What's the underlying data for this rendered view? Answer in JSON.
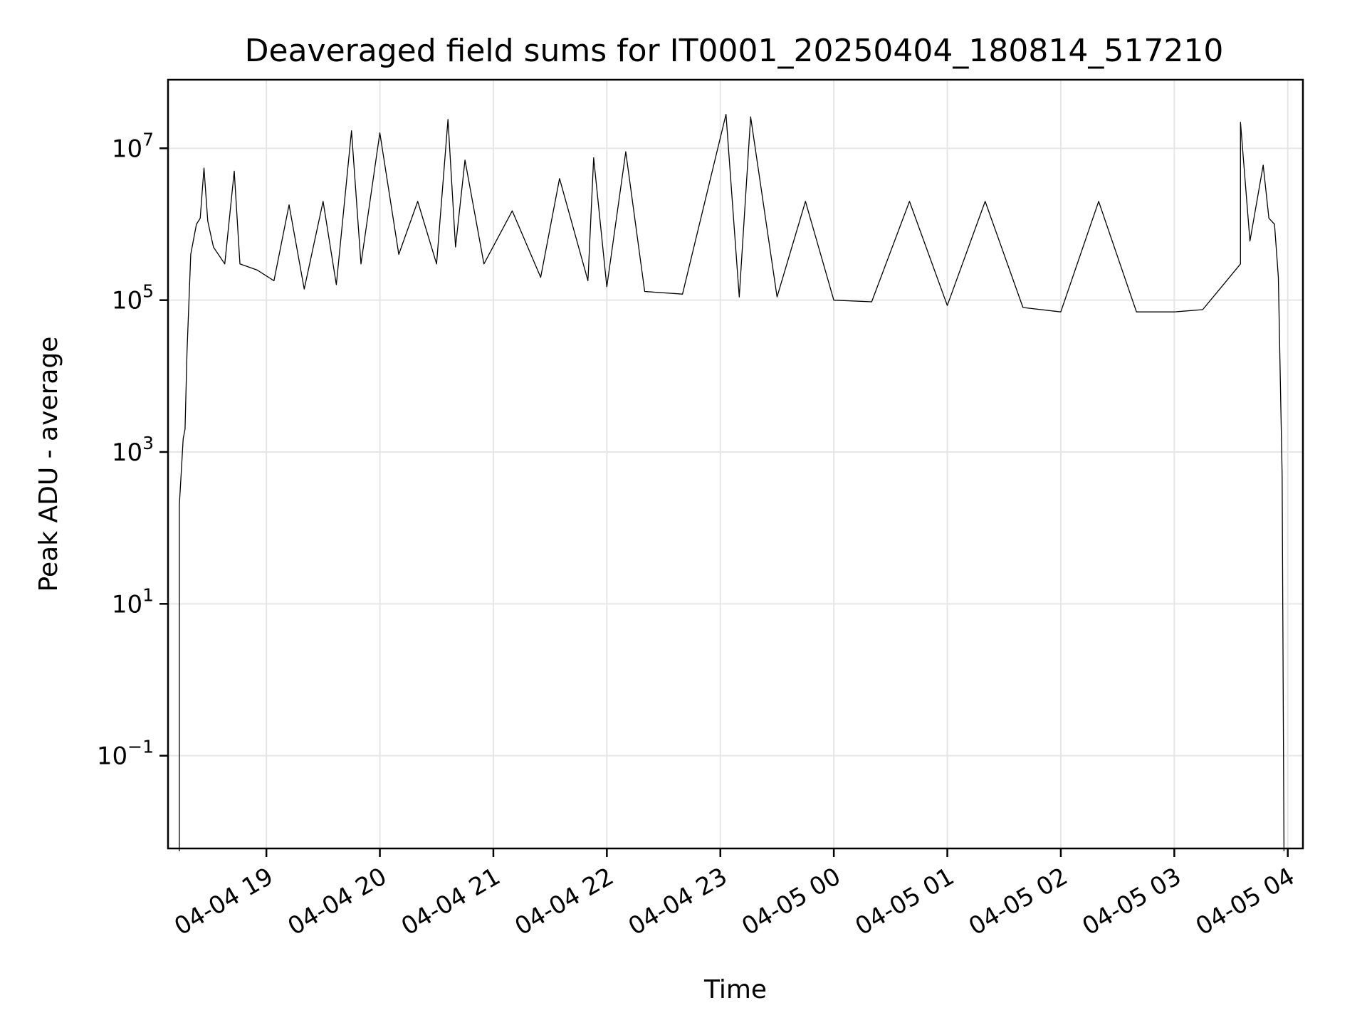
{
  "chart_data": {
    "type": "line",
    "title": "Deaveraged field sums for IT0001_20250404_180814_517210",
    "xlabel": "Time",
    "ylabel": "Peak ADU - average",
    "yscale": "log",
    "grid": true,
    "xlim": [
      "2025-04-04 18:08",
      "2025-04-05 04:08"
    ],
    "ylim": [
      0.006,
      80000000
    ],
    "x_ticks": [
      "04-04 19",
      "04-04 20",
      "04-04 21",
      "04-04 22",
      "04-04 23",
      "04-05 00",
      "04-05 01",
      "04-05 02",
      "04-05 03",
      "04-05 04"
    ],
    "x_tick_times": [
      "2025-04-04 19:00",
      "2025-04-04 20:00",
      "2025-04-04 21:00",
      "2025-04-04 22:00",
      "2025-04-04 23:00",
      "2025-04-05 00:00",
      "2025-04-05 01:00",
      "2025-04-05 02:00",
      "2025-04-05 03:00",
      "2025-04-05 04:00"
    ],
    "y_ticks": [
      {
        "base": "10",
        "exp": "−1",
        "value": 0.1
      },
      {
        "base": "10",
        "exp": "1",
        "value": 10
      },
      {
        "base": "10",
        "exp": "3",
        "value": 1000
      },
      {
        "base": "10",
        "exp": "5",
        "value": 100000
      },
      {
        "base": "10",
        "exp": "7",
        "value": 10000000
      }
    ],
    "series": [
      {
        "color": "#000000",
        "points": [
          [
            "2025-04-04 18:14",
            0.005
          ],
          [
            "2025-04-04 18:14",
            200
          ],
          [
            "2025-04-04 18:16",
            1500
          ],
          [
            "2025-04-04 18:17",
            2000
          ],
          [
            "2025-04-04 18:18",
            20000
          ],
          [
            "2025-04-04 18:20",
            400000
          ],
          [
            "2025-04-04 18:23",
            1000000
          ],
          [
            "2025-04-04 18:25",
            1200000
          ],
          [
            "2025-04-04 18:27",
            5500000
          ],
          [
            "2025-04-04 18:29",
            1100000
          ],
          [
            "2025-04-04 18:32",
            500000
          ],
          [
            "2025-04-04 18:38",
            300000
          ],
          [
            "2025-04-04 18:43",
            5000000
          ],
          [
            "2025-04-04 18:46",
            300000
          ],
          [
            "2025-04-04 18:55",
            250000
          ],
          [
            "2025-04-04 19:04",
            180000
          ],
          [
            "2025-04-04 19:12",
            1800000
          ],
          [
            "2025-04-04 19:20",
            140000
          ],
          [
            "2025-04-04 19:30",
            2000000
          ],
          [
            "2025-04-04 19:37",
            160000
          ],
          [
            "2025-04-04 19:45",
            17000000
          ],
          [
            "2025-04-04 19:50",
            300000
          ],
          [
            "2025-04-04 20:00",
            16000000
          ],
          [
            "2025-04-04 20:10",
            400000
          ],
          [
            "2025-04-04 20:20",
            2000000
          ],
          [
            "2025-04-04 20:30",
            300000
          ],
          [
            "2025-04-04 20:36",
            24000000
          ],
          [
            "2025-04-04 20:40",
            500000
          ],
          [
            "2025-04-04 20:45",
            7000000
          ],
          [
            "2025-04-04 20:55",
            300000
          ],
          [
            "2025-04-04 21:10",
            1500000
          ],
          [
            "2025-04-04 21:25",
            200000
          ],
          [
            "2025-04-04 21:35",
            4000000
          ],
          [
            "2025-04-04 21:50",
            180000
          ],
          [
            "2025-04-04 21:53",
            7500000
          ],
          [
            "2025-04-04 22:00",
            150000
          ],
          [
            "2025-04-04 22:10",
            9000000
          ],
          [
            "2025-04-04 22:20",
            130000
          ],
          [
            "2025-04-04 22:40",
            120000
          ],
          [
            "2025-04-04 23:03",
            28000000
          ],
          [
            "2025-04-04 23:10",
            110000
          ],
          [
            "2025-04-04 23:16",
            26000000
          ],
          [
            "2025-04-04 23:30",
            110000
          ],
          [
            "2025-04-04 23:45",
            2000000
          ],
          [
            "2025-04-05 00:00",
            100000
          ],
          [
            "2025-04-05 00:20",
            95000
          ],
          [
            "2025-04-05 00:40",
            2000000
          ],
          [
            "2025-04-05 01:00",
            85000
          ],
          [
            "2025-04-05 01:20",
            2000000
          ],
          [
            "2025-04-05 01:40",
            80000
          ],
          [
            "2025-04-05 02:00",
            70000
          ],
          [
            "2025-04-05 02:20",
            2000000
          ],
          [
            "2025-04-05 02:40",
            70000
          ],
          [
            "2025-04-05 03:00",
            70000
          ],
          [
            "2025-04-05 03:15",
            75000
          ],
          [
            "2025-04-05 03:25",
            150000
          ],
          [
            "2025-04-05 03:35",
            300000
          ],
          [
            "2025-04-05 03:35",
            22000000
          ],
          [
            "2025-04-05 03:40",
            600000
          ],
          [
            "2025-04-05 03:47",
            6000000
          ],
          [
            "2025-04-05 03:50",
            1200000
          ],
          [
            "2025-04-05 03:53",
            1000000
          ],
          [
            "2025-04-05 03:55",
            200000
          ],
          [
            "2025-04-05 03:57",
            500
          ],
          [
            "2025-04-05 03:58",
            0.005
          ]
        ]
      }
    ]
  }
}
